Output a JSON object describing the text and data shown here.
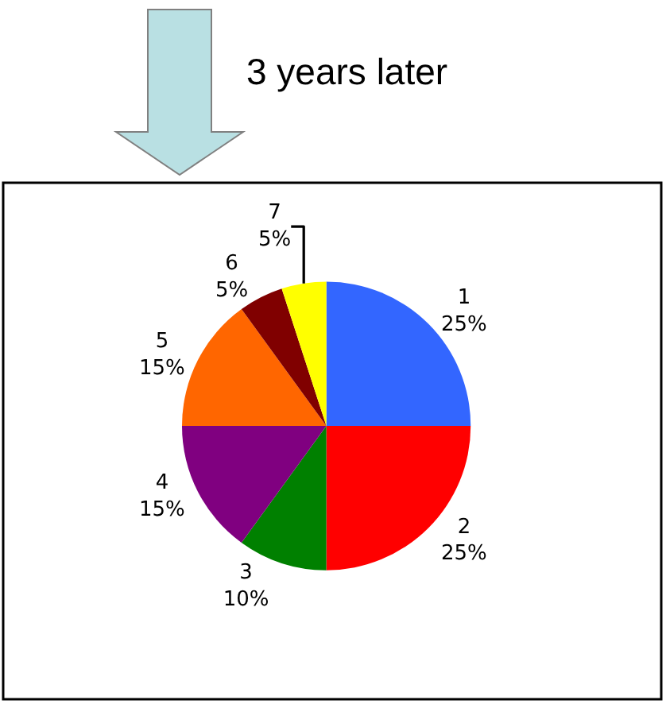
{
  "chart_data": {
    "type": "pie",
    "categories": [
      "1",
      "2",
      "3",
      "4",
      "5",
      "6",
      "7"
    ],
    "values": [
      25,
      25,
      10,
      15,
      15,
      5,
      5
    ],
    "value_labels": [
      "25%",
      "25%",
      "10%",
      "15%",
      "15%",
      "5%",
      "5%"
    ],
    "colors": [
      "#3366ff",
      "#ff0000",
      "#008000",
      "#800080",
      "#ff6600",
      "#800000",
      "#ffff00"
    ],
    "annotations": [
      "3 years later"
    ]
  }
}
